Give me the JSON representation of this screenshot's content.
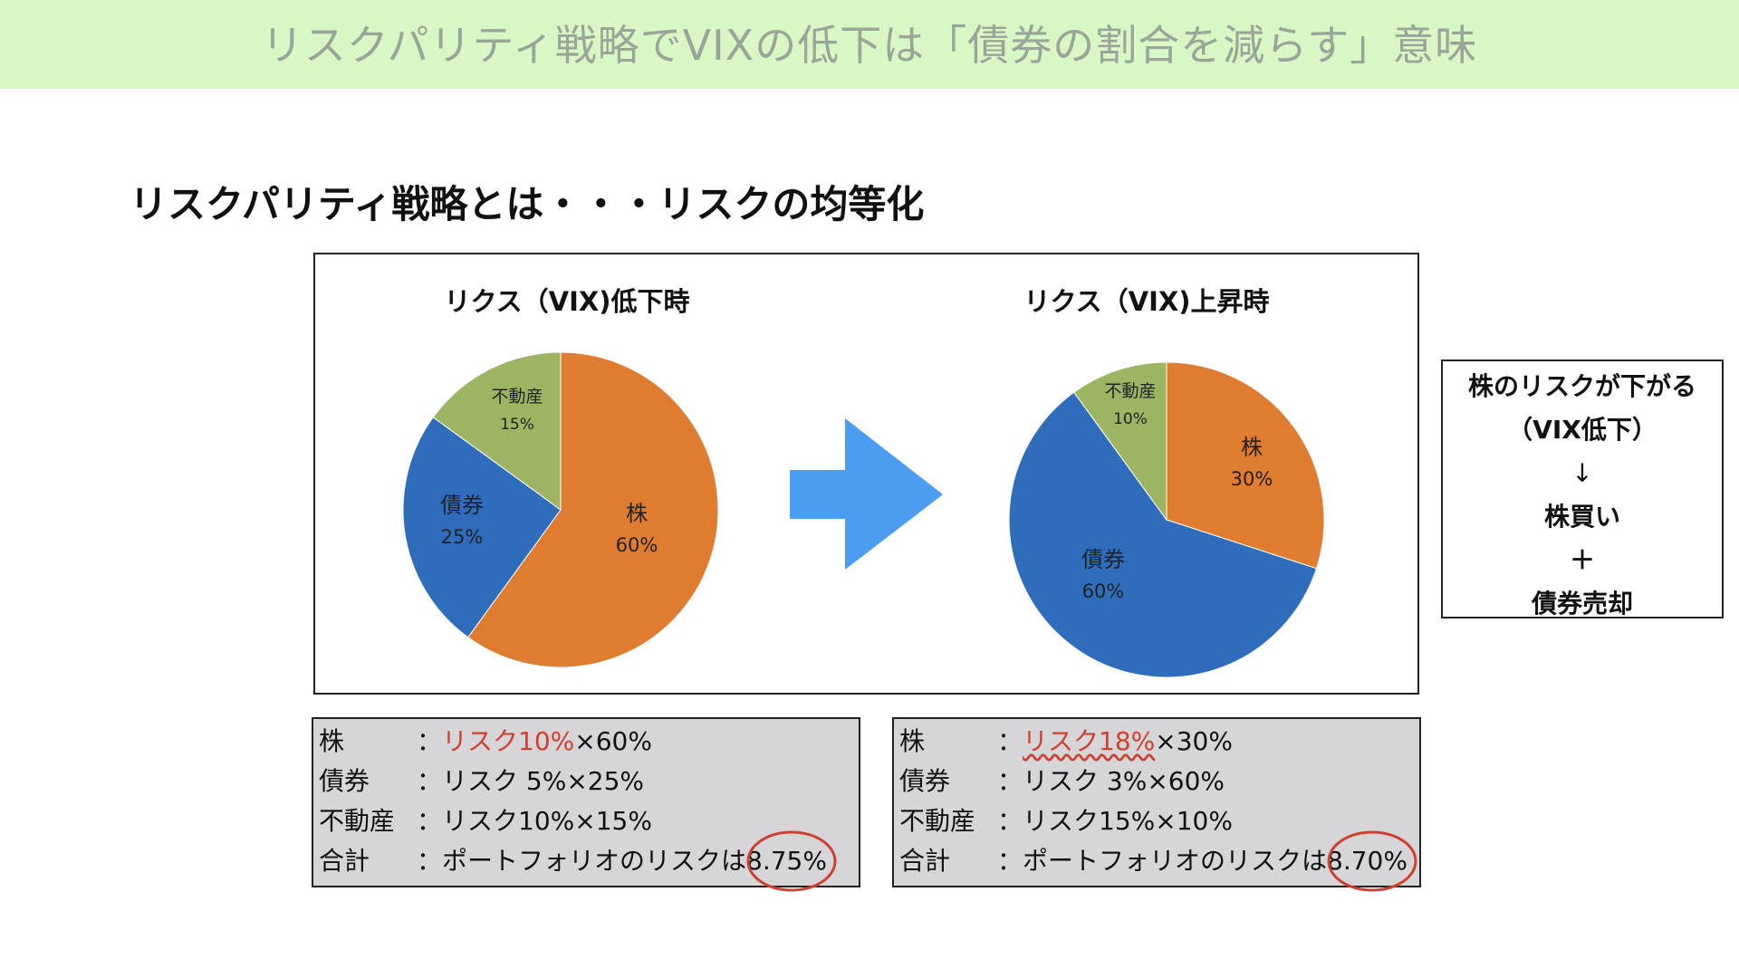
{
  "banner": {
    "title": "リスクパリティ戦略でVIXの低下は「債券の割合を減らす」意味",
    "color": "#d9f7c5"
  },
  "heading": "リスクパリティ戦略とは・・・リスクの均等化",
  "chart_data": [
    {
      "type": "pie",
      "title": "リクス（VIX)低下時",
      "slices": [
        {
          "label": "株",
          "value": 60,
          "value_label": "60%",
          "color": "#e07c30"
        },
        {
          "label": "債券",
          "value": 25,
          "value_label": "25%",
          "color": "#2f6dbc"
        },
        {
          "label": "不動産",
          "value": 15,
          "value_label": "15%",
          "color": "#9db562"
        }
      ]
    },
    {
      "type": "pie",
      "title": "リクス（VIX)上昇時",
      "slices": [
        {
          "label": "株",
          "value": 30,
          "value_label": "30%",
          "color": "#e07c30"
        },
        {
          "label": "債券",
          "value": 60,
          "value_label": "60%",
          "color": "#2f6dbc"
        },
        {
          "label": "不動産",
          "value": 10,
          "value_label": "10%",
          "color": "#9db562"
        }
      ]
    }
  ],
  "arrow": {
    "icon": "right-arrow-icon",
    "color": "#4a9df1"
  },
  "side_note": {
    "line1": "株のリスクが下がる",
    "line2": "（VIX低下）",
    "arrow": "↓",
    "line3": "株買い",
    "plus": "＋",
    "line4": "債券売却"
  },
  "calc_left": {
    "rows": [
      {
        "name": "株",
        "sep": "：",
        "risk": "リスク10%",
        "weight": "×60%"
      },
      {
        "name": "債券",
        "sep": "：",
        "risk": "リスク 5%",
        "weight": "×25%"
      },
      {
        "name": "不動産",
        "sep": "：",
        "risk": "リスク10%",
        "weight": "×15%"
      },
      {
        "name": "合計",
        "sep": "：",
        "text": "ポートフォリオのリスクは",
        "total": "8.75%"
      }
    ]
  },
  "calc_right": {
    "rows": [
      {
        "name": "株",
        "sep": "：",
        "risk": "リスク18%",
        "weight": "×30%"
      },
      {
        "name": "債券",
        "sep": "：",
        "risk": "リスク 3%",
        "weight": "×60%"
      },
      {
        "name": "不動産",
        "sep": "：",
        "risk": "リスク15%",
        "weight": "×10%"
      },
      {
        "name": "合計",
        "sep": "：",
        "text": "ポートフォリオのリスクは",
        "total": "8.70%"
      }
    ]
  },
  "highlight_color": "#d0402f"
}
